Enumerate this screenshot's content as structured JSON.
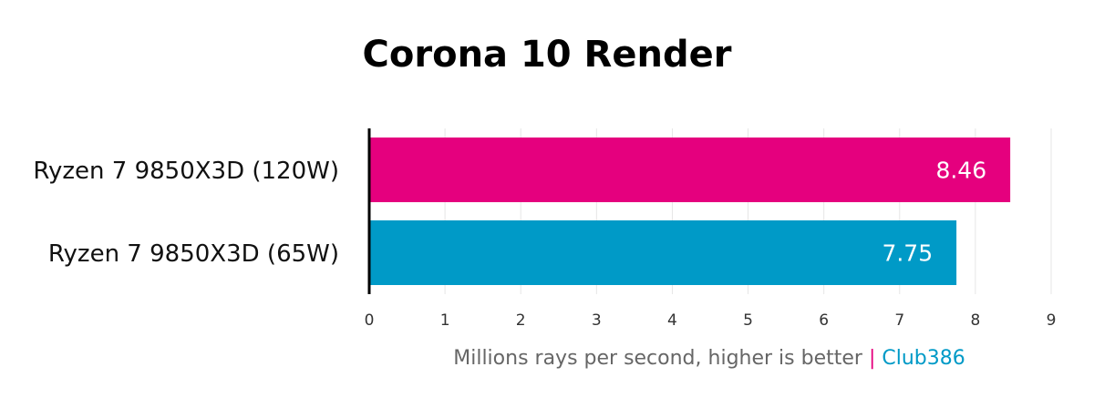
{
  "chart_data": {
    "type": "bar",
    "orientation": "horizontal",
    "title": "Corona 10 Render",
    "categories": [
      "Ryzen 7 9850X3D (120W)",
      "Ryzen 7 9850X3D (65W)"
    ],
    "values": [
      8.46,
      7.75
    ],
    "colors": [
      "#e5007e",
      "#009ac7"
    ],
    "xlim": [
      0,
      9
    ],
    "xticks": [
      0,
      1,
      2,
      3,
      4,
      5,
      6,
      7,
      8,
      9
    ],
    "grid": true,
    "x_label": "Millions rays per second, higher is better",
    "separator": "|",
    "source": "Club386"
  }
}
